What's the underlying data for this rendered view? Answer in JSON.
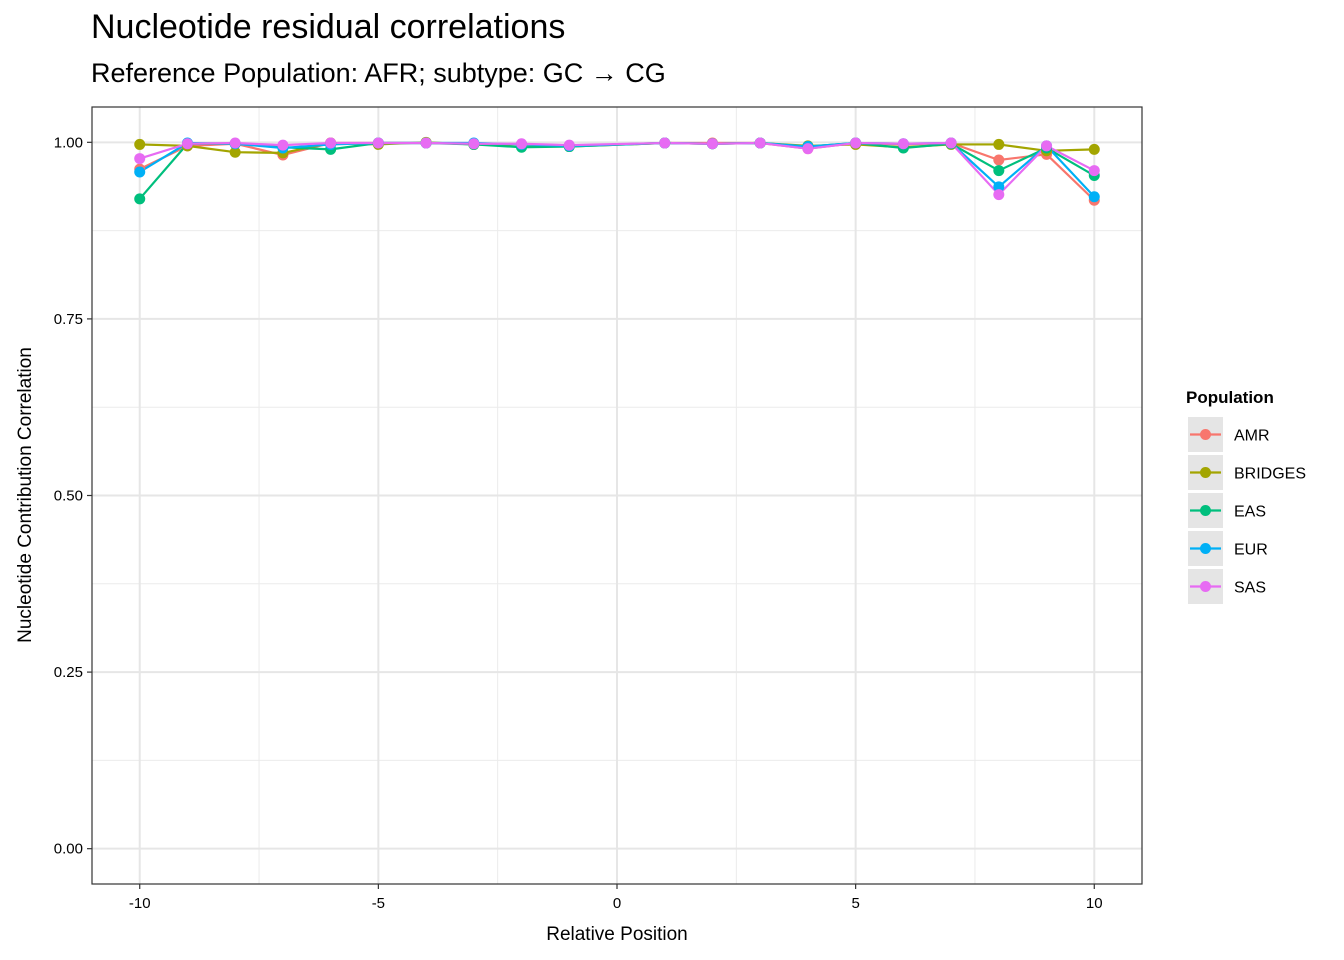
{
  "title": "Nucleotide residual correlations",
  "subtitle": "Reference Population: AFR; subtype: GC → CG",
  "chart_data": {
    "type": "line",
    "title": "Nucleotide residual correlations",
    "subtitle": "Reference Population: AFR; subtype: GC → CG",
    "xlabel": "Relative Position",
    "ylabel": "Nucleotide Contribution Correlation",
    "xlim": [
      -11,
      11
    ],
    "ylim": [
      -0.05,
      1.05
    ],
    "xticks": [
      -10,
      -5,
      0,
      5,
      10
    ],
    "xtick_labels": [
      "-10",
      "-5",
      "0",
      "5",
      "10"
    ],
    "yticks": [
      0,
      0.25,
      0.5,
      0.75,
      1
    ],
    "ytick_labels": [
      "0.00",
      "0.25",
      "0.50",
      "0.75",
      "1.00"
    ],
    "grid": true,
    "legend_title": "Population",
    "legend_position": "right",
    "x": [
      -10,
      -9,
      -8,
      -7,
      -6,
      -5,
      -4,
      -3,
      -2,
      -1,
      1,
      2,
      3,
      4,
      5,
      6,
      7,
      8,
      9,
      10
    ],
    "series": [
      {
        "name": "AMR",
        "color": "#F8766D",
        "values": [
          0.962,
          0.995,
          0.998,
          0.982,
          0.999,
          0.999,
          0.999,
          0.998,
          0.997,
          0.995,
          0.999,
          0.999,
          0.999,
          0.991,
          0.999,
          0.997,
          0.999,
          0.975,
          0.983,
          0.918
        ]
      },
      {
        "name": "BRIDGES",
        "color": "#A3A500",
        "values": [
          0.997,
          0.995,
          0.986,
          0.985,
          0.999,
          0.997,
          1.0,
          0.997,
          0.997,
          0.994,
          0.999,
          0.998,
          0.999,
          0.995,
          0.997,
          0.993,
          0.997,
          0.997,
          0.988,
          0.99
        ]
      },
      {
        "name": "EAS",
        "color": "#00BF7D",
        "values": [
          0.92,
          0.998,
          0.998,
          0.993,
          0.99,
          0.999,
          0.999,
          0.997,
          0.993,
          0.994,
          0.999,
          0.998,
          0.999,
          0.994,
          0.999,
          0.992,
          0.998,
          0.96,
          0.992,
          0.953
        ]
      },
      {
        "name": "EUR",
        "color": "#00B0F6",
        "values": [
          0.958,
          0.999,
          0.998,
          0.992,
          0.997,
          0.999,
          0.999,
          0.999,
          0.997,
          0.995,
          0.999,
          0.998,
          0.999,
          0.994,
          0.999,
          0.998,
          0.999,
          0.937,
          0.995,
          0.923
        ]
      },
      {
        "name": "SAS",
        "color": "#E76BF3",
        "values": [
          0.977,
          0.998,
          0.999,
          0.996,
          0.999,
          0.999,
          0.999,
          0.998,
          0.998,
          0.996,
          0.999,
          0.998,
          0.999,
          0.991,
          0.999,
          0.998,
          0.999,
          0.926,
          0.995,
          0.96
        ]
      }
    ]
  }
}
